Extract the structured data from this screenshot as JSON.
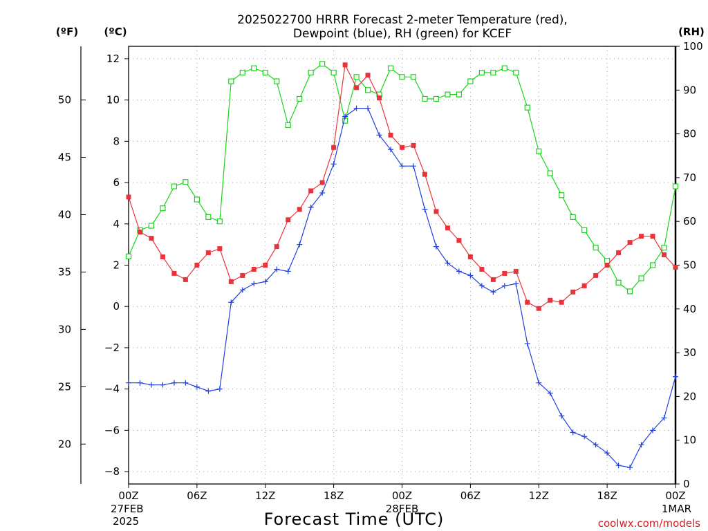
{
  "title_line1": "2025022700 HRRR Forecast 2-meter Temperature (red),",
  "title_line2": "Dewpoint (blue), RH (green) for KCEF",
  "unit_f": "(ºF)",
  "unit_c": "(ºC)",
  "unit_rh": "(RH)",
  "xlabel": "Forecast Time (UTC)",
  "credit": "coolwx.com/models",
  "colors": {
    "temperature": "#e8333a",
    "dewpoint": "#1f3fe0",
    "rh": "#19d419"
  },
  "chart_data": {
    "type": "line",
    "title": "2025022700 HRRR Forecast 2-meter Temperature (red), Dewpoint (blue), RH (green) for KCEF",
    "xlabel": "Forecast Time (UTC)",
    "x_hours": [
      0,
      1,
      2,
      3,
      4,
      5,
      6,
      7,
      8,
      9,
      10,
      11,
      12,
      13,
      14,
      15,
      16,
      17,
      18,
      19,
      20,
      21,
      22,
      23,
      24,
      25,
      26,
      27,
      28,
      29,
      30,
      31,
      32,
      33,
      34,
      35,
      36,
      37,
      38,
      39,
      40,
      41,
      42,
      43,
      44,
      45,
      46,
      47,
      48
    ],
    "x_ticks": [
      {
        "hour": 0,
        "label": "00Z",
        "sub1": "27FEB",
        "sub2": "2025"
      },
      {
        "hour": 6,
        "label": "06Z"
      },
      {
        "hour": 12,
        "label": "12Z"
      },
      {
        "hour": 18,
        "label": "18Z"
      },
      {
        "hour": 24,
        "label": "00Z",
        "sub1": "28FEB"
      },
      {
        "hour": 30,
        "label": "06Z"
      },
      {
        "hour": 36,
        "label": "12Z"
      },
      {
        "hour": 42,
        "label": "18Z"
      },
      {
        "hour": 48,
        "label": "00Z",
        "sub1": "1MAR"
      }
    ],
    "xlim": [
      0,
      48
    ],
    "y_celsius": {
      "label": "(ºC)",
      "ticks": [
        12,
        10,
        8,
        6,
        4,
        2,
        0,
        -2,
        -4,
        -6,
        -8
      ],
      "lim": [
        -8.6,
        12.6
      ]
    },
    "y_fahrenheit": {
      "label": "(ºF)",
      "ticks": [
        50,
        45,
        40,
        35,
        30,
        25,
        20
      ]
    },
    "y_rh": {
      "label": "(RH)",
      "ticks": [
        100,
        90,
        80,
        70,
        60,
        50,
        40,
        30,
        20,
        10,
        0
      ],
      "lim": [
        0,
        100
      ]
    },
    "grid": true,
    "series": [
      {
        "name": "Temperature",
        "axis": "celsius",
        "color": "#e8333a",
        "marker": "filled-square",
        "values": [
          5.3,
          3.6,
          3.3,
          2.4,
          1.6,
          1.3,
          2.0,
          2.6,
          2.8,
          1.2,
          1.5,
          1.8,
          2.0,
          2.9,
          4.2,
          4.7,
          5.6,
          6.0,
          7.7,
          11.7,
          10.6,
          11.2,
          10.1,
          8.3,
          7.7,
          7.8,
          6.4,
          4.6,
          3.8,
          3.2,
          2.4,
          1.8,
          1.3,
          1.6,
          1.7,
          0.2,
          -0.1,
          0.3,
          0.2,
          0.7,
          1.0,
          1.5,
          2.0,
          2.6,
          3.1,
          3.4,
          3.4,
          2.5,
          1.9
        ]
      },
      {
        "name": "Dewpoint",
        "axis": "celsius",
        "color": "#1f3fe0",
        "marker": "plus",
        "values": [
          -3.7,
          -3.7,
          -3.8,
          -3.8,
          -3.7,
          -3.7,
          -3.9,
          -4.1,
          -4.0,
          0.2,
          0.8,
          1.1,
          1.2,
          1.8,
          1.7,
          3.0,
          4.8,
          5.5,
          6.9,
          9.2,
          9.6,
          9.6,
          8.3,
          7.6,
          6.8,
          6.8,
          4.7,
          2.9,
          2.1,
          1.7,
          1.5,
          1.0,
          0.7,
          1.0,
          1.1,
          -1.8,
          -3.7,
          -4.2,
          -5.3,
          -6.1,
          -6.3,
          -6.7,
          -7.1,
          -7.7,
          -7.8,
          -6.7,
          -6.0,
          -5.4,
          -3.4
        ]
      },
      {
        "name": "RH",
        "axis": "rh",
        "color": "#19d419",
        "marker": "open-square",
        "values": [
          52,
          58,
          59,
          63,
          68,
          69,
          65,
          61,
          60,
          92,
          94,
          95,
          94,
          92,
          82,
          88,
          94,
          96,
          94,
          83,
          93,
          90,
          89,
          95,
          93,
          93,
          88,
          88,
          89,
          89,
          92,
          94,
          94,
          95,
          94,
          86,
          76,
          71,
          66,
          61,
          58,
          54,
          51,
          46,
          44,
          47,
          50,
          54,
          68
        ]
      }
    ]
  }
}
